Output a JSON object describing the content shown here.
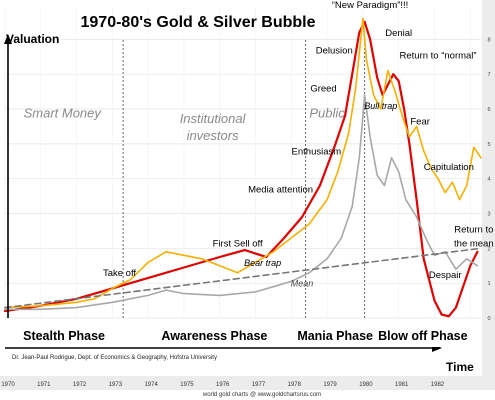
{
  "chart_data": {
    "type": "line",
    "title": "1970-80's Gold & Silver Bubble",
    "ylabel": "Valuation",
    "xlabel": "Time",
    "x_tick_labels": [
      "1970",
      "1971",
      "1972",
      "1973",
      "1974",
      "1975",
      "1976",
      "1977",
      "1978",
      "1979",
      "1980",
      "1981",
      "1982"
    ],
    "right_tick_labels": [
      "0",
      "1",
      "2",
      "3",
      "4",
      "5",
      "6",
      "7",
      "8"
    ],
    "xlim": [
      1970,
      1983.3
    ],
    "ylim": [
      0,
      8.9
    ],
    "phases": [
      {
        "label": "Stealth Phase",
        "start": 1970,
        "end": 1973.3
      },
      {
        "label": "Awareness Phase",
        "start": 1973.3,
        "end": 1978.4
      },
      {
        "label": "Mania Phase",
        "start": 1978.4,
        "end": 1980.05
      },
      {
        "label": "Blow off Phase",
        "start": 1980.05,
        "end": 1983.3
      }
    ],
    "participants": [
      {
        "label": "Smart Money",
        "x": 1971.6,
        "y": 5.75
      },
      {
        "label": "Institutional\ninvestors",
        "x": 1975.8,
        "y": 5.6
      },
      {
        "label": "Public",
        "x": 1979.0,
        "y": 5.75
      }
    ],
    "annotations": [
      {
        "text": "“New Paradigm”!!!",
        "x": 1980.2,
        "y": 8.9
      },
      {
        "text": "Delusion",
        "x": 1979.2,
        "y": 7.6
      },
      {
        "text": "Denial",
        "x": 1981.0,
        "y": 8.1
      },
      {
        "text": "Return to “normal”",
        "x": 1982.1,
        "y": 7.45
      },
      {
        "text": "Greed",
        "x": 1978.9,
        "y": 6.5
      },
      {
        "text": "Bull trap",
        "x": 1980.5,
        "y": 6.0
      },
      {
        "text": "Fear",
        "x": 1981.6,
        "y": 5.55
      },
      {
        "text": "Enthusiasm",
        "x": 1978.7,
        "y": 4.7
      },
      {
        "text": "Capitulation",
        "x": 1982.4,
        "y": 4.25
      },
      {
        "text": "Media attention",
        "x": 1977.7,
        "y": 3.6
      },
      {
        "text": "Return to",
        "x": 1983.1,
        "y": 2.45
      },
      {
        "text": "the mean",
        "x": 1983.1,
        "y": 2.05
      },
      {
        "text": "First Sell off",
        "x": 1976.5,
        "y": 2.05
      },
      {
        "text": "Bear trap",
        "x": 1977.2,
        "y": 1.5
      },
      {
        "text": "Take off",
        "x": 1973.2,
        "y": 1.2
      },
      {
        "text": "Mean",
        "x": 1978.3,
        "y": 0.9
      },
      {
        "text": "Despair",
        "x": 1982.3,
        "y": 1.15
      }
    ],
    "series": [
      {
        "name": "",
        "color": "#e00000",
        "x": [
          1970,
          1971,
          1972,
          1973,
          1974,
          1975,
          1976,
          1976.7,
          1977.3,
          1977.8,
          1978.3,
          1978.8,
          1979.2,
          1979.5,
          1979.7,
          1979.9,
          1980.05,
          1980.2,
          1980.4,
          1980.55,
          1980.7,
          1980.85,
          1981.0,
          1981.15,
          1981.3,
          1981.5,
          1981.7,
          1982.0,
          1982.2,
          1982.4,
          1982.6,
          1982.8,
          1983.0,
          1983.2
        ],
        "y": [
          0.2,
          0.35,
          0.55,
          0.85,
          1.15,
          1.45,
          1.75,
          1.95,
          1.75,
          2.3,
          2.9,
          3.8,
          4.9,
          5.8,
          7.0,
          8.2,
          8.5,
          8.0,
          6.9,
          6.4,
          6.7,
          7.0,
          6.8,
          6.0,
          5.0,
          3.4,
          1.7,
          0.5,
          0.1,
          0.05,
          0.3,
          0.9,
          1.5,
          1.9
        ]
      },
      {
        "name": "",
        "color": "#f5b000",
        "x": [
          1970,
          1971,
          1972,
          1972.5,
          1973,
          1973.5,
          1974,
          1974.5,
          1975,
          1975.5,
          1976,
          1976.5,
          1977,
          1977.5,
          1978,
          1978.5,
          1979,
          1979.3,
          1979.6,
          1979.8,
          1980.0,
          1980.1,
          1980.3,
          1980.5,
          1980.7,
          1980.9,
          1981.1,
          1981.3,
          1981.5,
          1981.7,
          1981.9,
          1982.1,
          1982.3,
          1982.5,
          1982.7,
          1982.9,
          1983.1,
          1983.3
        ],
        "y": [
          0.3,
          0.35,
          0.45,
          0.55,
          0.85,
          1.1,
          1.6,
          1.9,
          1.8,
          1.7,
          1.5,
          1.3,
          1.6,
          1.9,
          2.3,
          2.7,
          3.4,
          4.2,
          5.3,
          6.6,
          8.6,
          7.4,
          6.4,
          6.0,
          7.1,
          6.5,
          5.8,
          5.2,
          5.5,
          4.8,
          4.3,
          4.0,
          3.6,
          3.9,
          3.4,
          3.8,
          4.9,
          4.6
        ]
      },
      {
        "name": "",
        "color": "#a8a8a8",
        "x": [
          1970,
          1971,
          1972,
          1973,
          1974,
          1974.5,
          1975,
          1976,
          1977,
          1977.5,
          1978,
          1978.5,
          1979,
          1979.4,
          1979.7,
          1979.9,
          1980.05,
          1980.2,
          1980.4,
          1980.6,
          1980.8,
          1981.0,
          1981.2,
          1981.5,
          1981.8,
          1982.0,
          1982.3,
          1982.6,
          1982.9,
          1983.2
        ],
        "y": [
          0.25,
          0.25,
          0.3,
          0.45,
          0.65,
          0.8,
          0.7,
          0.65,
          0.75,
          0.9,
          1.05,
          1.3,
          1.7,
          2.3,
          3.2,
          4.6,
          6.4,
          5.2,
          4.1,
          3.8,
          4.6,
          4.2,
          3.4,
          2.9,
          2.2,
          1.8,
          1.9,
          1.4,
          1.7,
          1.5
        ]
      },
      {
        "name": "Mean",
        "color": "#777777",
        "dashed": true,
        "x": [
          1970,
          1983.3
        ],
        "y": [
          0.3,
          2.0
        ]
      }
    ],
    "source_note": "Dr. Jean-Paul Rodrigue, Dept. of Economics & Geography, Hofstra University",
    "watermark": "world gold charts @ www.goldchartsrus.com"
  }
}
